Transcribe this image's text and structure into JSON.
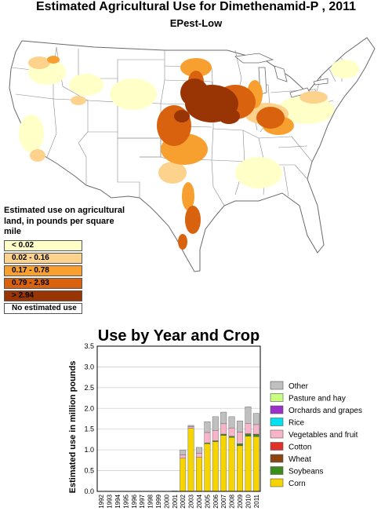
{
  "map": {
    "title": "Estimated Agricultural Use for Dimethenamid-P , 2011",
    "subtitle": "EPest-Low",
    "legend_title": "Estimated use on agricultural land, in pounds per square mile",
    "legend": [
      {
        "label": "< 0.02",
        "color": "#ffffc8"
      },
      {
        "label": "0.02 - 0.16",
        "color": "#fcd28c"
      },
      {
        "label": "0.17 - 0.78",
        "color": "#f7a030"
      },
      {
        "label": "0.79 - 2.93",
        "color": "#d9620f"
      },
      {
        "label": "> 2.94",
        "color": "#993404"
      },
      {
        "label": "No estimated use",
        "color": "#ffffff"
      }
    ]
  },
  "chart_data": {
    "type": "bar",
    "stacked": true,
    "title": "Use by Year and Crop",
    "ylabel": "Estimated use in million pounds",
    "xlabel": "",
    "ylim": [
      0,
      3.5
    ],
    "yticks": [
      "0.0",
      "0.5",
      "1.0",
      "1.5",
      "2.0",
      "2.5",
      "3.0",
      "3.5"
    ],
    "grid": true,
    "legend_position": "right",
    "categories": [
      "1992",
      "1993",
      "1994",
      "1995",
      "1996",
      "1997",
      "1998",
      "1999",
      "2000",
      "2001",
      "2002",
      "2003",
      "2004",
      "2005",
      "2006",
      "2007",
      "2008",
      "2009",
      "2010",
      "2011"
    ],
    "series": [
      {
        "name": "Corn",
        "color": "#f5d400",
        "values": [
          0,
          0,
          0,
          0,
          0,
          0,
          0,
          0,
          0,
          0.01,
          0.8,
          1.52,
          0.82,
          1.15,
          1.2,
          1.35,
          1.3,
          1.1,
          1.33,
          1.32
        ]
      },
      {
        "name": "Soybeans",
        "color": "#3a8c1c",
        "values": [
          0,
          0,
          0,
          0,
          0,
          0,
          0,
          0,
          0,
          0,
          0,
          0,
          0,
          0.02,
          0.02,
          0.03,
          0.03,
          0.05,
          0.05,
          0.05
        ]
      },
      {
        "name": "Wheat",
        "color": "#8b4513",
        "values": [
          0,
          0,
          0,
          0,
          0,
          0,
          0,
          0,
          0,
          0,
          0,
          0,
          0,
          0,
          0,
          0,
          0,
          0,
          0,
          0
        ]
      },
      {
        "name": "Cotton",
        "color": "#e0302a",
        "values": [
          0,
          0,
          0,
          0,
          0,
          0,
          0,
          0,
          0,
          0,
          0,
          0,
          0,
          0,
          0,
          0,
          0,
          0,
          0.01,
          0.01
        ]
      },
      {
        "name": "Vegetables and fruit",
        "color": "#f8b4c8",
        "values": [
          0,
          0,
          0,
          0,
          0,
          0,
          0,
          0,
          0,
          0,
          0.08,
          0.04,
          0.1,
          0.25,
          0.25,
          0.25,
          0.2,
          0.28,
          0.25,
          0.23
        ]
      },
      {
        "name": "Rice",
        "color": "#00e0f0",
        "values": [
          0,
          0,
          0,
          0,
          0,
          0,
          0,
          0,
          0,
          0,
          0,
          0,
          0,
          0,
          0,
          0,
          0,
          0,
          0,
          0
        ]
      },
      {
        "name": "Orchards and grapes",
        "color": "#9a30c8",
        "values": [
          0,
          0,
          0,
          0,
          0,
          0,
          0,
          0,
          0,
          0,
          0,
          0,
          0,
          0,
          0,
          0,
          0,
          0,
          0,
          0
        ]
      },
      {
        "name": "Pasture and hay",
        "color": "#c8ff80",
        "values": [
          0,
          0,
          0,
          0,
          0,
          0,
          0,
          0,
          0,
          0,
          0,
          0,
          0,
          0,
          0,
          0,
          0,
          0,
          0,
          0
        ]
      },
      {
        "name": "Other",
        "color": "#c0c0c0",
        "values": [
          0,
          0,
          0,
          0,
          0,
          0,
          0,
          0,
          0,
          0,
          0.12,
          0.03,
          0.14,
          0.26,
          0.33,
          0.28,
          0.27,
          0.27,
          0.4,
          0.27
        ]
      }
    ]
  }
}
